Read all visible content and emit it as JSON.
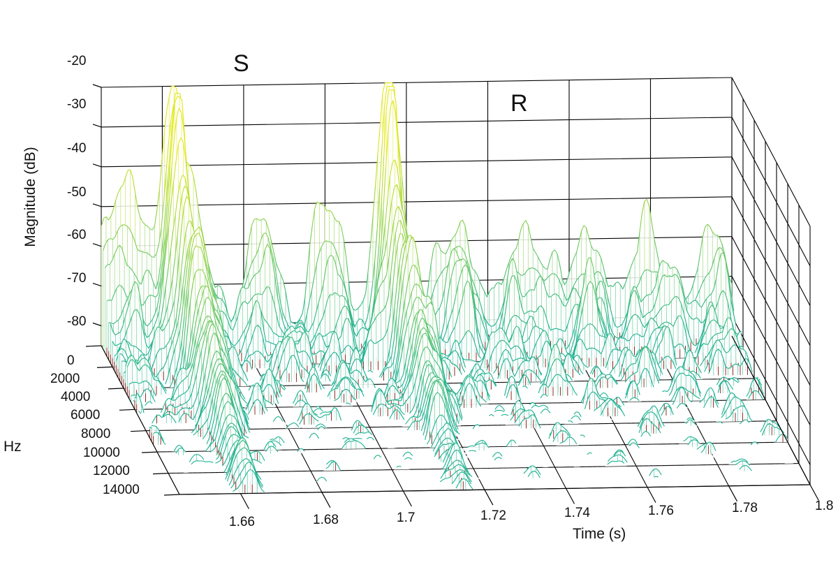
{
  "chart_data": {
    "type": "surface",
    "zlabel": "Magnitude (dB)",
    "ylabel": "Hz",
    "xlabel": "Time (s)",
    "z_ticks": [
      "-20",
      "-30",
      "-40",
      "-50",
      "-60",
      "-70",
      "-80"
    ],
    "z_values": [
      -20,
      -30,
      -40,
      -50,
      -60,
      -70,
      -80
    ],
    "zlim": [
      -85,
      -20
    ],
    "y_ticks": [
      "0",
      "2000",
      "4000",
      "6000",
      "8000",
      "10000",
      "12000",
      "14000"
    ],
    "y_values": [
      0,
      2000,
      4000,
      6000,
      8000,
      10000,
      12000,
      14000
    ],
    "ylim": [
      0,
      14000
    ],
    "x_ticks": [
      "1.66",
      "1.68",
      "1.7",
      "1.72",
      "1.74",
      "1.76",
      "1.78",
      "1.8"
    ],
    "x_values": [
      1.66,
      1.68,
      1.7,
      1.72,
      1.74,
      1.76,
      1.78,
      1.8
    ],
    "xlim": [
      1.645,
      1.8
    ],
    "annotations": [
      {
        "text": "S",
        "time": 1.662,
        "magnitude": -20
      },
      {
        "text": "R",
        "time": 1.716,
        "magnitude": -30
      }
    ],
    "peaks": [
      {
        "name": "S",
        "time": 1.6625,
        "freq": 500,
        "magnitude": -31
      },
      {
        "name": "R",
        "time": 1.7155,
        "freq": 500,
        "magnitude": -40
      }
    ],
    "colors": {
      "low": "#1bb08f",
      "high": "#e2e81a",
      "base": "#8a1a10",
      "grid": "#000000"
    }
  }
}
